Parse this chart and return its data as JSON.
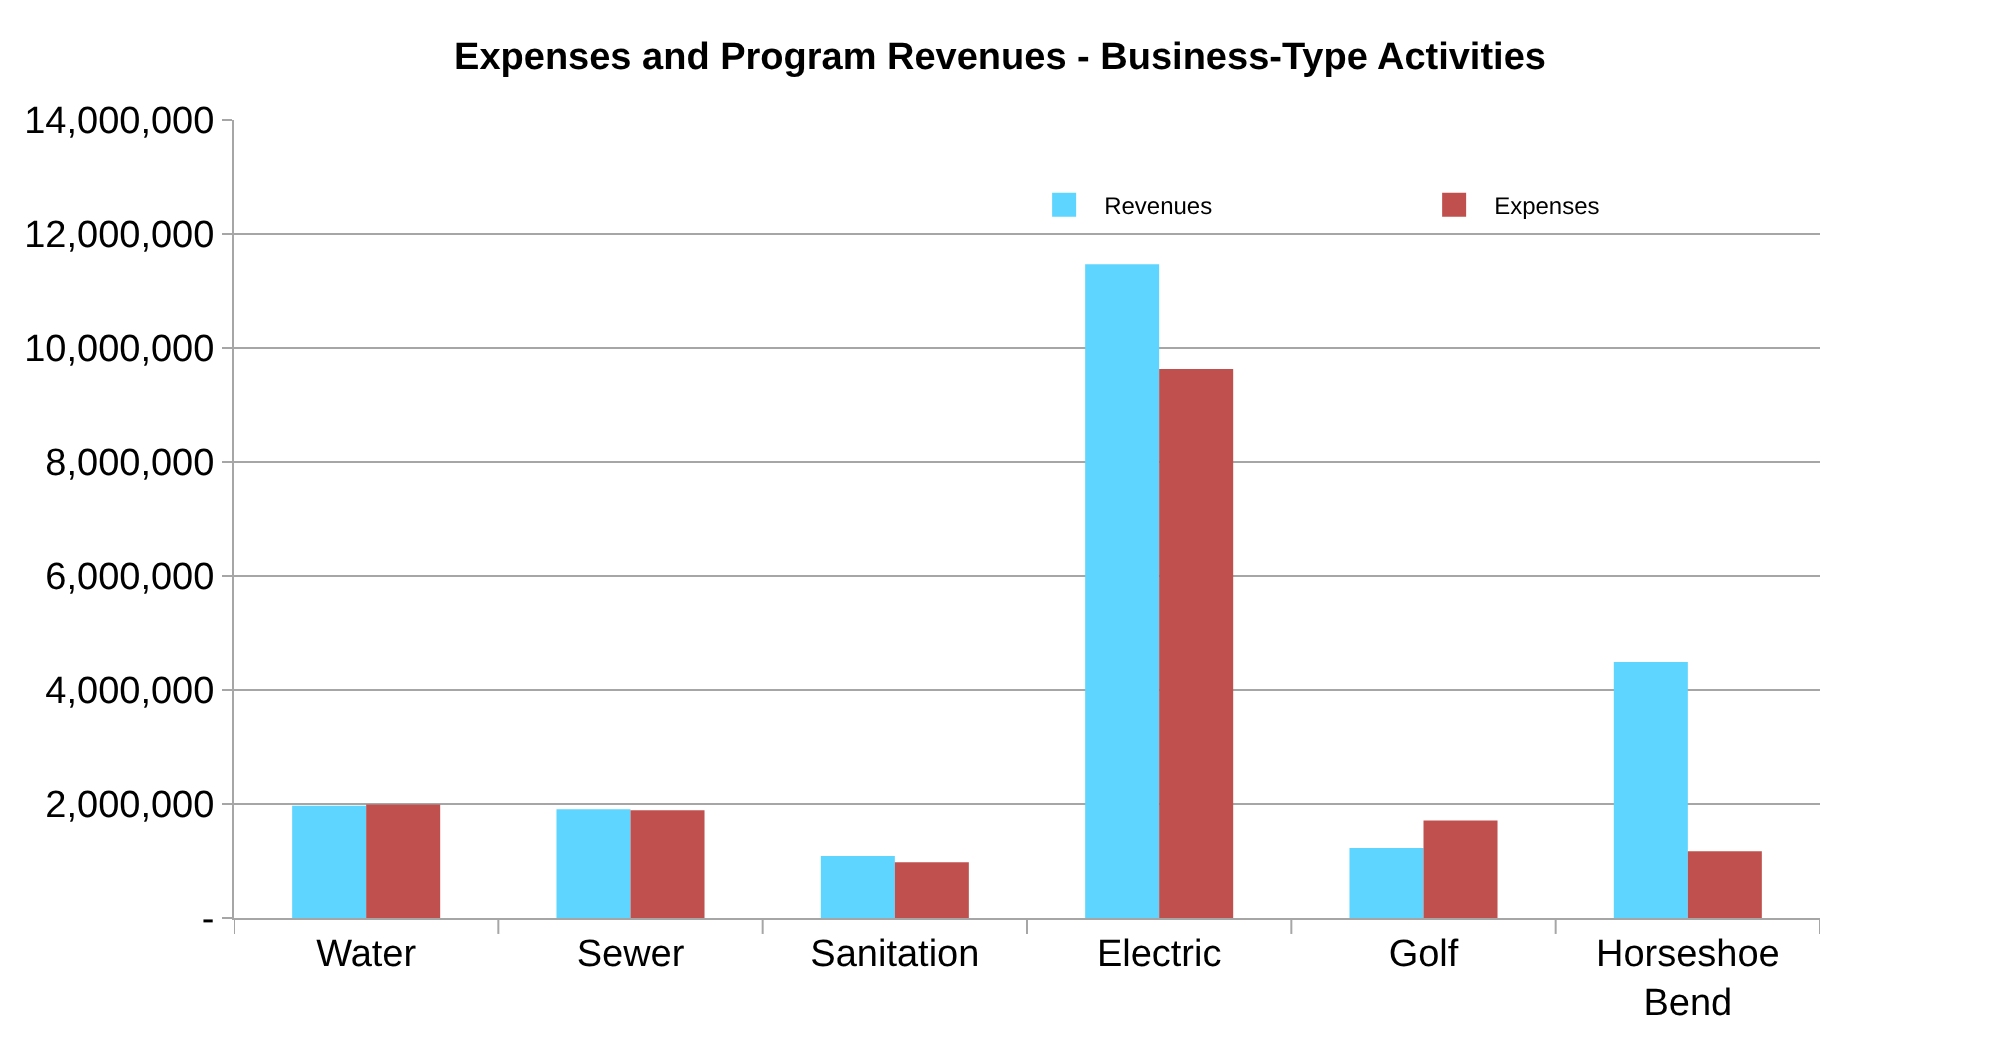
{
  "chart_data": {
    "type": "bar",
    "title": "Expenses and Program Revenues - Business-Type Activities",
    "categories": [
      "Water",
      "Sewer",
      "Sanitation",
      "Electric",
      "Golf",
      "Horseshoe Bend"
    ],
    "series": [
      {
        "name": "Revenues",
        "color": "#5dd5ff",
        "values": [
          1970000,
          1910000,
          1090000,
          11470000,
          1230000,
          4490000
        ]
      },
      {
        "name": "Expenses",
        "color": "#c0504d",
        "values": [
          1990000,
          1890000,
          980000,
          9630000,
          1710000,
          1170000
        ]
      }
    ],
    "ylim": [
      0,
      14000000
    ],
    "yticks": [
      {
        "value": 0,
        "label": "-"
      },
      {
        "value": 2000000,
        "label": "2,000,000"
      },
      {
        "value": 4000000,
        "label": "4,000,000"
      },
      {
        "value": 6000000,
        "label": "6,000,000"
      },
      {
        "value": 8000000,
        "label": "8,000,000"
      },
      {
        "value": 10000000,
        "label": "10,000,000"
      },
      {
        "value": 12000000,
        "label": "12,000,000"
      },
      {
        "value": 14000000,
        "label": "14,000,000"
      }
    ],
    "grid": "y",
    "legend": "top right"
  }
}
